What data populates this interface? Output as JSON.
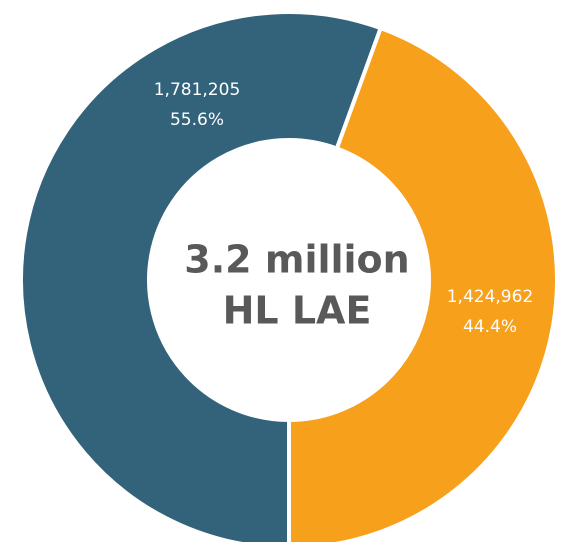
{
  "chart_data": {
    "type": "donut",
    "center_label": [
      "3.2 million",
      "HL LAE"
    ],
    "values": [
      1781205,
      1424962
    ],
    "value_labels": [
      "1,781,205",
      "1,424,962"
    ],
    "percentages": [
      55.6,
      44.4
    ],
    "percent_labels": [
      "55.6%",
      "44.4%"
    ],
    "colors": [
      "#33637a",
      "#f7a01b"
    ]
  }
}
